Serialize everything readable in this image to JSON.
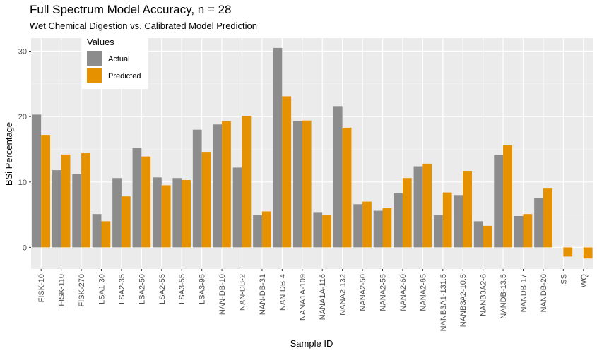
{
  "chart_data": {
    "type": "bar",
    "title": "Full Spectrum Model Accuracy, n = 28",
    "subtitle": "Wet Chemical Digestion vs. Calibrated Model Prediction",
    "xlabel": "Sample ID",
    "ylabel": "BSi Percentage",
    "ylim": [
      -3.3,
      32.0
    ],
    "yticks": [
      0,
      10,
      20,
      30
    ],
    "grid": true,
    "legend": {
      "title": "Values",
      "position": "top-left-inside"
    },
    "categories": [
      "FISK-10",
      "FISK-110",
      "FISK-270",
      "LSA1-30",
      "LSA2-35",
      "LSA2-50",
      "LSA2-55",
      "LSA3-55",
      "LSA3-95",
      "NAN-DB-10",
      "NAN-DB-2",
      "NAN-DB-31",
      "NAN-DB-4",
      "NANA1A-109",
      "NANA1A-116",
      "NANA2-132",
      "NANA2-50",
      "NANA2-55",
      "NANA2-60",
      "NANA2-65",
      "NANB3A1-131.5",
      "NANB3A2-10.5",
      "NANB3A2-6",
      "NANDB-13.5",
      "NANDB-17",
      "NANDB-20",
      "SS",
      "WQ"
    ],
    "series": [
      {
        "name": "Actual",
        "color": "#8c8c8c",
        "values": [
          20.3,
          11.8,
          11.2,
          5.1,
          10.6,
          15.2,
          10.7,
          10.6,
          18.0,
          18.8,
          12.2,
          4.9,
          30.5,
          19.3,
          5.4,
          21.6,
          6.6,
          5.6,
          8.3,
          12.4,
          4.9,
          8.0,
          4.0,
          14.1,
          4.8,
          7.6,
          null,
          null
        ]
      },
      {
        "name": "Predicted",
        "color": "#e69100",
        "values": [
          17.2,
          14.2,
          14.4,
          4.0,
          7.8,
          13.9,
          9.5,
          10.3,
          14.5,
          19.3,
          20.1,
          5.5,
          23.1,
          19.4,
          5.0,
          18.3,
          7.0,
          6.0,
          10.6,
          12.8,
          8.4,
          11.7,
          3.3,
          15.6,
          5.1,
          9.1,
          -1.4,
          -1.7
        ]
      }
    ]
  }
}
